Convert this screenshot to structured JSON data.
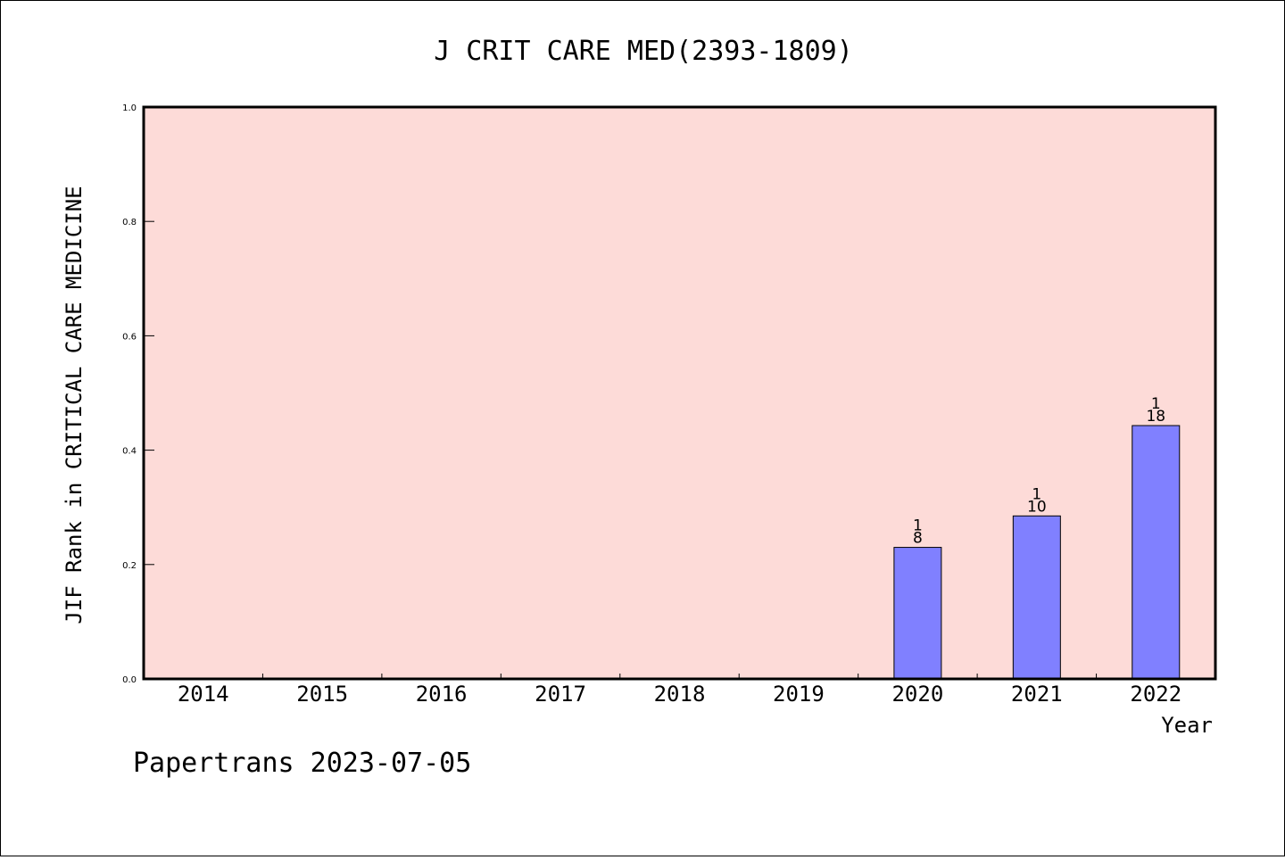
{
  "chart_data": {
    "type": "bar",
    "title": "J CRIT CARE MED(2393-1809)",
    "xlabel": "Year",
    "ylabel": "JIF Rank in CRITICAL CARE MEDICINE",
    "ylim": [
      0,
      1.0
    ],
    "yticks": [
      "0.0",
      "0.2",
      "0.4",
      "0.6",
      "0.8",
      "1.0"
    ],
    "categories": [
      "2014",
      "2015",
      "2016",
      "2017",
      "2018",
      "2019",
      "2020",
      "2021",
      "2022"
    ],
    "values": [
      null,
      null,
      null,
      null,
      null,
      null,
      0.23,
      0.285,
      0.443
    ],
    "bar_labels": [
      null,
      null,
      null,
      null,
      null,
      null,
      {
        "top": "1",
        "bottom": "8"
      },
      {
        "top": "1",
        "bottom": "10"
      },
      {
        "top": "1",
        "bottom": "18"
      }
    ],
    "grid": false,
    "colors": {
      "plot_background": "#fddbd8",
      "bar_fill": "#8080ff",
      "bar_stroke": "#000000"
    }
  },
  "footer": {
    "credit": "Papertrans 2023-07-05"
  }
}
